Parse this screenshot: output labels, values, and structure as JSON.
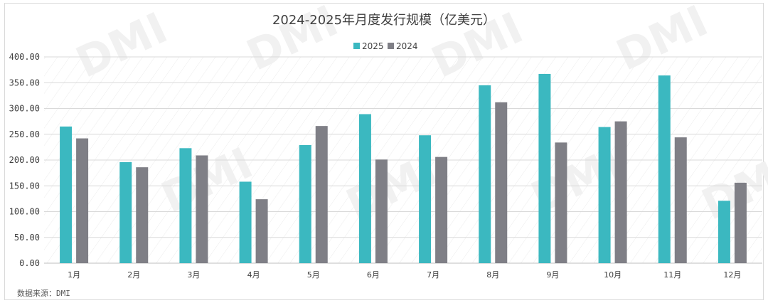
{
  "chart_data": {
    "type": "bar",
    "title": "2024-2025年月度发行规模（亿美元）",
    "categories": [
      "1月",
      "2月",
      "3月",
      "4月",
      "5月",
      "6月",
      "7月",
      "8月",
      "9月",
      "10月",
      "11月",
      "12月"
    ],
    "series": [
      {
        "name": "2025",
        "color": "#3bb8c0",
        "values": [
          265,
          196,
          223,
          158,
          229,
          289,
          248,
          345,
          367,
          264,
          364,
          121
        ]
      },
      {
        "name": "2024",
        "color": "#7f7f86",
        "values": [
          242,
          186,
          209,
          124,
          266,
          201,
          206,
          312,
          234,
          275,
          244,
          156
        ]
      }
    ],
    "ylim": [
      0,
      400
    ],
    "yticks": [
      "0.00",
      "50.00",
      "100.00",
      "150.00",
      "200.00",
      "250.00",
      "300.00",
      "350.00",
      "400.00"
    ],
    "xlabel": "",
    "ylabel": "",
    "legend": "top-center",
    "grid": true,
    "source": "数据来源：DMI",
    "watermark": "DMI"
  }
}
